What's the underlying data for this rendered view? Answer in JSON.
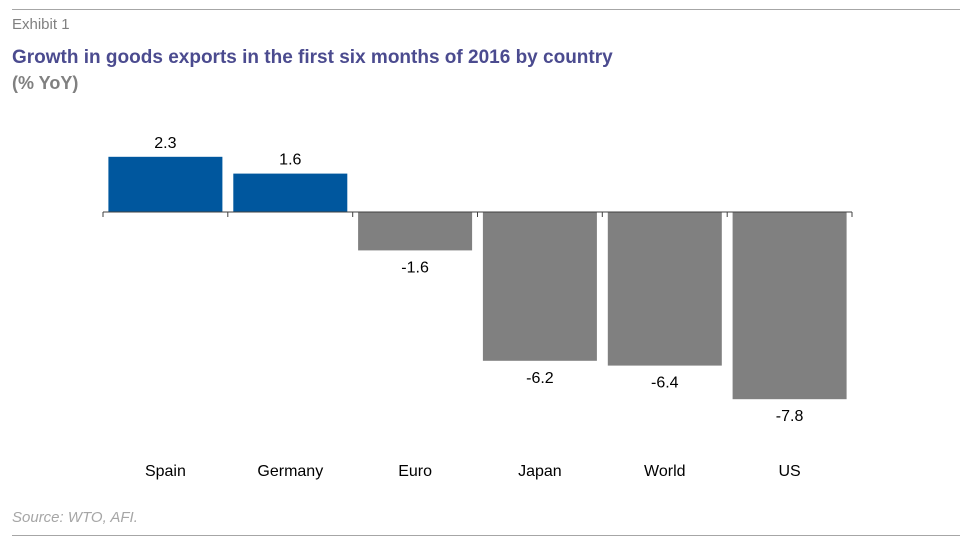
{
  "header": {
    "exhibit": "Exhibit 1",
    "title": "Growth in goods exports in the first six months of 2016 by country",
    "subtitle": "(% YoY)"
  },
  "footer": {
    "source": "Source: WTO, AFI."
  },
  "colors": {
    "positive": "#00579e",
    "negative": "#808080",
    "axis": "#404040"
  },
  "chart_data": {
    "type": "bar",
    "categories": [
      "Spain",
      "Germany",
      "Euro",
      "Japan",
      "World",
      "US"
    ],
    "values": [
      2.3,
      1.6,
      -1.6,
      -6.2,
      -6.4,
      -7.8
    ],
    "data_labels": [
      "2.3",
      "1.6",
      "-1.6",
      "-6.2",
      "-6.4",
      "-7.8"
    ],
    "ylim": [
      -8.6,
      2.5
    ],
    "grid": false,
    "legend": "none"
  }
}
